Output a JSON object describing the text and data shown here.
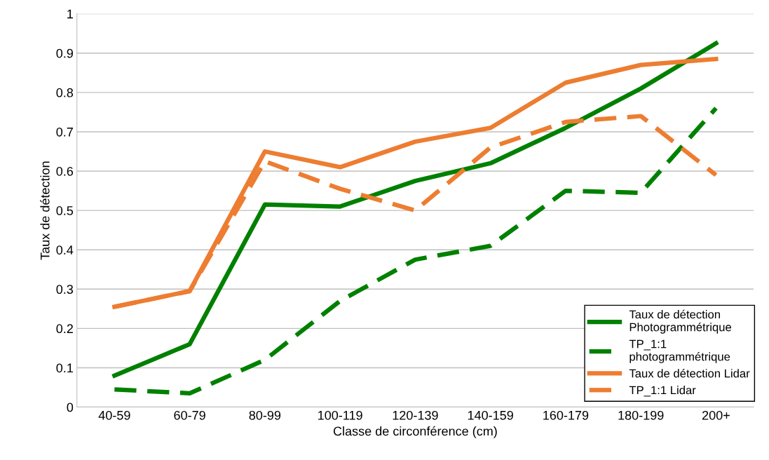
{
  "chart_data": {
    "type": "line",
    "xlabel": "Classe de circonférence (cm)",
    "ylabel": "Taux de détection",
    "categories": [
      "40-59",
      "60-79",
      "80-99",
      "100-119",
      "120-139",
      "140-159",
      "160-179",
      "180-199",
      "200+"
    ],
    "series": [
      {
        "name": "Taux de détection\nPhotogrammétrique",
        "color": "#008000",
        "line_style": "solid",
        "values": [
          0.08,
          0.16,
          0.515,
          0.51,
          0.575,
          0.62,
          0.71,
          0.81,
          0.925
        ]
      },
      {
        "name": "TP_1:1\nphotogrammétrique",
        "color": "#008000",
        "line_style": "dashed",
        "values": [
          0.045,
          0.035,
          0.12,
          0.27,
          0.375,
          0.41,
          0.55,
          0.545,
          0.76
        ]
      },
      {
        "name": "Taux de détection Lidar",
        "color": "#ed7d31",
        "line_style": "solid",
        "values": [
          0.255,
          0.295,
          0.65,
          0.61,
          0.675,
          0.71,
          0.825,
          0.87,
          0.885
        ]
      },
      {
        "name": "TP_1:1 Lidar",
        "color": "#ed7d31",
        "line_style": "dashed",
        "values": [
          0.255,
          0.295,
          0.625,
          0.555,
          0.5,
          0.66,
          0.725,
          0.74,
          0.59
        ]
      }
    ],
    "ylim": [
      0,
      1
    ],
    "yticks": [
      0,
      0.1,
      0.2,
      0.3,
      0.4,
      0.5,
      0.6,
      0.7,
      0.8,
      0.9,
      1
    ],
    "grid": "y",
    "legend": "bottom right",
    "marker": "none"
  }
}
